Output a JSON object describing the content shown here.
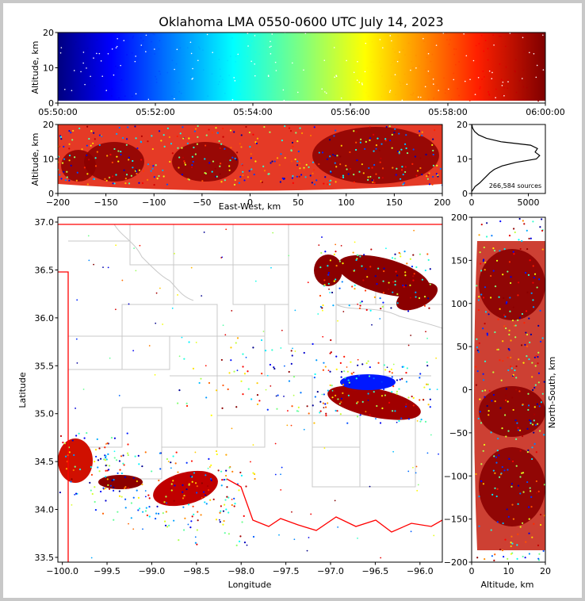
{
  "chart_data": [
    {
      "type": "scatter",
      "panel": "altitude-vs-time",
      "title": "Oklahoma LMA 0550-0600 UTC July 14, 2023",
      "ylabel": "Altitude, km",
      "ylim": [
        0,
        20
      ],
      "yticks": [
        "0",
        "10",
        "20"
      ],
      "xticks": [
        "05:50:00",
        "05:52:00",
        "05:54:00",
        "05:56:00",
        "05:58:00",
        "06:00:00"
      ],
      "colormap": "jet, colored by time"
    },
    {
      "type": "scatter",
      "panel": "altitude-vs-east-west",
      "xlabel": "East-West, km",
      "ylabel": "Altitude, km",
      "xlim": [
        -200,
        200
      ],
      "ylim": [
        0,
        20
      ],
      "xticks": [
        "−200",
        "−150",
        "−100",
        "−50",
        "0",
        "50",
        "100",
        "150",
        "200"
      ],
      "yticks": [
        "0",
        "10",
        "20"
      ]
    },
    {
      "type": "line",
      "panel": "source-altitude-histogram",
      "annotation": "266,584 sources",
      "xlim": [
        0,
        6500
      ],
      "ylim": [
        0,
        20
      ],
      "xticks": [
        "0",
        "5000"
      ],
      "yticks": [
        "0",
        "10",
        "20"
      ],
      "profile": [
        [
          0,
          0.5
        ],
        [
          100,
          1
        ],
        [
          300,
          2
        ],
        [
          700,
          3
        ],
        [
          1000,
          4
        ],
        [
          1300,
          5
        ],
        [
          1600,
          6
        ],
        [
          2000,
          7
        ],
        [
          2700,
          8
        ],
        [
          3900,
          9
        ],
        [
          5700,
          10
        ],
        [
          6000,
          11
        ],
        [
          5600,
          12
        ],
        [
          5800,
          13
        ],
        [
          5200,
          14
        ],
        [
          2600,
          15
        ],
        [
          1300,
          16
        ],
        [
          600,
          17
        ],
        [
          250,
          18
        ],
        [
          80,
          19
        ],
        [
          20,
          20
        ]
      ]
    },
    {
      "type": "scatter",
      "panel": "plan-view-map",
      "xlabel": "Longitude",
      "ylabel": "Latitude",
      "xlim": [
        -100.05,
        -95.75
      ],
      "ylim": [
        33.45,
        37.05
      ],
      "xticks": [
        "−100.0",
        "−99.5",
        "−99.0",
        "−98.5",
        "−98.0",
        "−97.5",
        "−97.0",
        "−96.5",
        "−96.0"
      ],
      "yticks": [
        "33.5",
        "34.0",
        "34.5",
        "35.0",
        "35.5",
        "36.0",
        "36.5",
        "37.0"
      ]
    },
    {
      "type": "scatter",
      "panel": "north-south-vs-altitude",
      "xlabel": "Altitude, km",
      "ylabel": "North-South, km",
      "xlim": [
        0,
        20
      ],
      "ylim": [
        -200,
        200
      ],
      "xticks": [
        "0",
        "10",
        "20"
      ],
      "yticks": [
        "−200",
        "−150",
        "−100",
        "−50",
        "0",
        "50",
        "100",
        "150",
        "200"
      ]
    }
  ]
}
